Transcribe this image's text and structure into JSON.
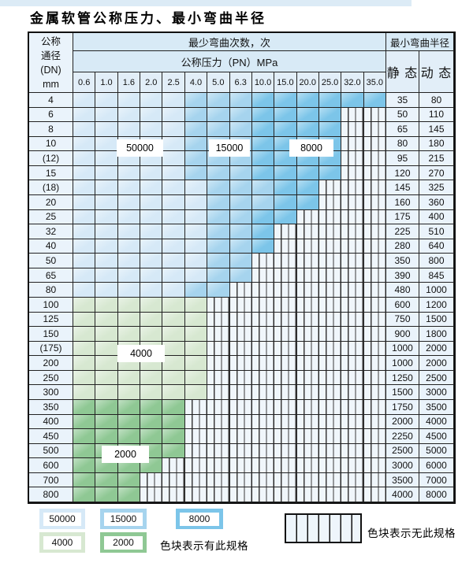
{
  "page": {
    "title": "金属软管公称压力、最小弯曲半径"
  },
  "table": {
    "header": {
      "dn_lines": [
        "公称",
        "通径",
        "(DN)",
        "mm"
      ],
      "cycles_title": "最少弯曲次数，次",
      "pressure_title": "公称压力（PN）MPa",
      "pressures": [
        "0.6",
        "1.0",
        "1.6",
        "2.0",
        "2.5",
        "4.0",
        "5.0",
        "6.3",
        "10.0",
        "15.0",
        "20.0",
        "25.0",
        "32.0",
        "35.0"
      ],
      "radius_title": "最小弯曲半径",
      "static_label": "静 态",
      "dynamic_label": "动 态"
    },
    "rows": [
      {
        "dn": "4",
        "bands": [
          [
            "50000",
            5
          ],
          [
            "15000",
            8
          ],
          [
            "8000",
            14
          ]
        ],
        "static": "35",
        "dynamic": "80"
      },
      {
        "dn": "6",
        "bands": [
          [
            "50000",
            5
          ],
          [
            "15000",
            8
          ],
          [
            "8000",
            12
          ]
        ],
        "static": "50",
        "dynamic": "110"
      },
      {
        "dn": "8",
        "bands": [
          [
            "50000",
            5
          ],
          [
            "15000",
            8
          ],
          [
            "8000",
            12
          ]
        ],
        "static": "65",
        "dynamic": "145"
      },
      {
        "dn": "10",
        "bands": [
          [
            "50000",
            5
          ],
          [
            "15000",
            8
          ],
          [
            "8000",
            12
          ]
        ],
        "static": "80",
        "dynamic": "180"
      },
      {
        "dn": "(12)",
        "bands": [
          [
            "50000",
            5
          ],
          [
            "15000",
            8
          ],
          [
            "8000",
            12
          ]
        ],
        "static": "95",
        "dynamic": "215"
      },
      {
        "dn": "15",
        "bands": [
          [
            "50000",
            5
          ],
          [
            "15000",
            8
          ],
          [
            "8000",
            12
          ]
        ],
        "static": "120",
        "dynamic": "270"
      },
      {
        "dn": "(18)",
        "bands": [
          [
            "50000",
            6
          ],
          [
            "15000",
            9
          ],
          [
            "8000",
            11
          ]
        ],
        "static": "145",
        "dynamic": "325"
      },
      {
        "dn": "20",
        "bands": [
          [
            "50000",
            6
          ],
          [
            "15000",
            9
          ],
          [
            "8000",
            11
          ]
        ],
        "static": "160",
        "dynamic": "360"
      },
      {
        "dn": "25",
        "bands": [
          [
            "50000",
            6
          ],
          [
            "15000",
            8
          ],
          [
            "8000",
            10
          ]
        ],
        "static": "175",
        "dynamic": "400"
      },
      {
        "dn": "32",
        "bands": [
          [
            "50000",
            6
          ],
          [
            "15000",
            8
          ],
          [
            "8000",
            9
          ]
        ],
        "static": "225",
        "dynamic": "510"
      },
      {
        "dn": "40",
        "bands": [
          [
            "50000",
            6
          ],
          [
            "15000",
            8
          ],
          [
            "8000",
            9
          ]
        ],
        "static": "280",
        "dynamic": "640"
      },
      {
        "dn": "50",
        "bands": [
          [
            "50000",
            6
          ],
          [
            "15000",
            8
          ]
        ],
        "static": "350",
        "dynamic": "800"
      },
      {
        "dn": "65",
        "bands": [
          [
            "50000",
            6
          ],
          [
            "15000",
            8
          ]
        ],
        "static": "390",
        "dynamic": "845"
      },
      {
        "dn": "80",
        "bands": [
          [
            "50000",
            5
          ],
          [
            "15000",
            7
          ]
        ],
        "static": "480",
        "dynamic": "1000"
      },
      {
        "dn": "100",
        "bands": [
          [
            "4000",
            6
          ]
        ],
        "static": "600",
        "dynamic": "1200"
      },
      {
        "dn": "125",
        "bands": [
          [
            "4000",
            6
          ]
        ],
        "static": "750",
        "dynamic": "1500"
      },
      {
        "dn": "150",
        "bands": [
          [
            "4000",
            6
          ]
        ],
        "static": "900",
        "dynamic": "1800"
      },
      {
        "dn": "(175)",
        "bands": [
          [
            "4000",
            6
          ]
        ],
        "static": "1000",
        "dynamic": "2000"
      },
      {
        "dn": "200",
        "bands": [
          [
            "4000",
            6
          ]
        ],
        "static": "1000",
        "dynamic": "2000"
      },
      {
        "dn": "250",
        "bands": [
          [
            "4000",
            6
          ]
        ],
        "static": "1250",
        "dynamic": "2500"
      },
      {
        "dn": "300",
        "bands": [
          [
            "4000",
            6
          ]
        ],
        "static": "1500",
        "dynamic": "3000"
      },
      {
        "dn": "350",
        "bands": [
          [
            "2000",
            5
          ]
        ],
        "static": "1750",
        "dynamic": "3500"
      },
      {
        "dn": "400",
        "bands": [
          [
            "2000",
            5
          ]
        ],
        "static": "2000",
        "dynamic": "4000"
      },
      {
        "dn": "450",
        "bands": [
          [
            "2000",
            5
          ]
        ],
        "static": "2250",
        "dynamic": "4500"
      },
      {
        "dn": "500",
        "bands": [
          [
            "2000",
            5
          ]
        ],
        "static": "2500",
        "dynamic": "5000"
      },
      {
        "dn": "600",
        "bands": [
          [
            "2000",
            4
          ]
        ],
        "static": "3000",
        "dynamic": "6000"
      },
      {
        "dn": "700",
        "bands": [
          [
            "2000",
            3
          ]
        ],
        "static": "3500",
        "dynamic": "7000"
      },
      {
        "dn": "800",
        "bands": [
          [
            "2000",
            3
          ]
        ],
        "static": "4000",
        "dynamic": "8000"
      }
    ],
    "region_labels": [
      {
        "text": "50000"
      },
      {
        "text": "15000"
      },
      {
        "text": "8000"
      },
      {
        "text": "4000"
      },
      {
        "text": "2000"
      }
    ]
  },
  "legend": {
    "swatches": [
      {
        "text": "50000"
      },
      {
        "text": "15000"
      },
      {
        "text": "8000"
      },
      {
        "text": "4000"
      },
      {
        "text": "2000"
      }
    ],
    "has_spec_text": "色块表示有此规格",
    "no_spec_text": "色块表示无此规格"
  },
  "colors": {
    "50000": "#d6e9f7",
    "15000": "#a6d4ee",
    "8000": "#7cc5e9",
    "4000": "#d7e8d1",
    "2000": "#8fc894"
  }
}
